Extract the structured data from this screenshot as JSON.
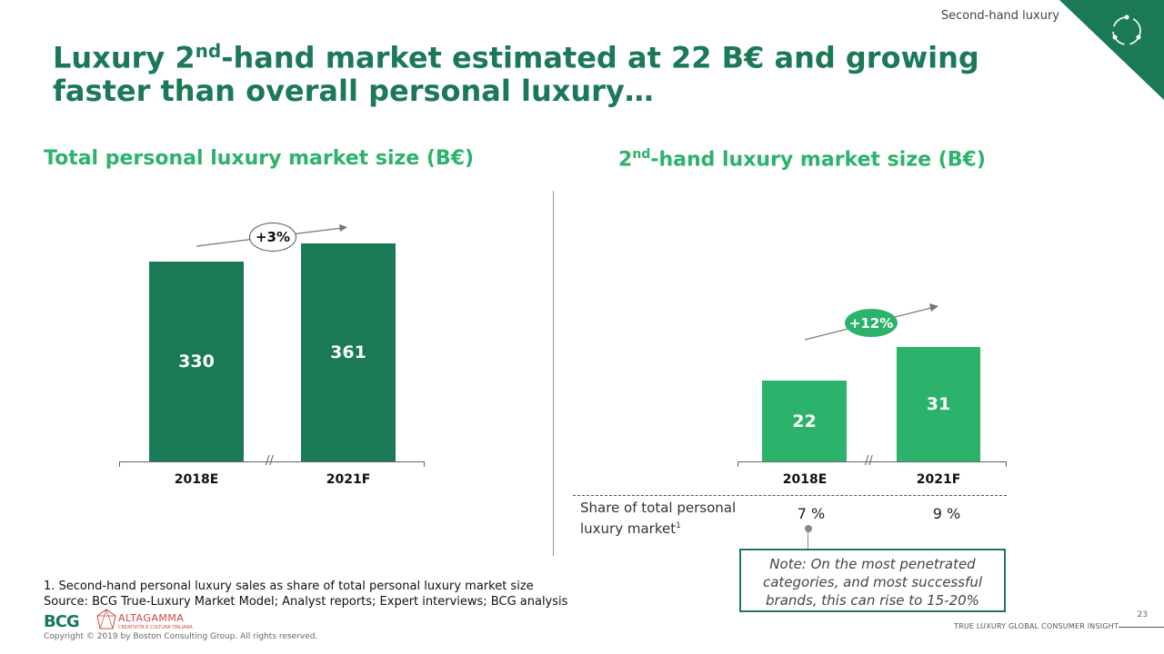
{
  "header": {
    "tag": "Second-hand luxury",
    "title_part1": "Luxury 2",
    "title_sup": "nd",
    "title_part2": "-hand market estimated at 22 B€ and growing faster than overall personal luxury…"
  },
  "left_chart": {
    "title": "Total personal luxury market size (B€)",
    "growth_label": "+3%"
  },
  "right_chart": {
    "title_part1": "2",
    "title_sup": "nd",
    "title_part2": "-hand luxury market size (B€)",
    "growth_label": "+12%",
    "share_label_line1": "Share of total personal",
    "share_label_line2": "luxury market",
    "share_label_sup": "1",
    "share_values": [
      "7 %",
      "9 %"
    ],
    "note": "Note: On the most penetrated categories, and most successful brands, this can rise to 15-20%"
  },
  "chart_data": [
    {
      "type": "bar",
      "title": "Total personal luxury market size (B€)",
      "categories": [
        "2018E",
        "2021F"
      ],
      "values": [
        330,
        361
      ],
      "growth": "+3%",
      "color": "#1b7a55"
    },
    {
      "type": "bar",
      "title": "2nd-hand luxury market size (B€)",
      "categories": [
        "2018E",
        "2021F"
      ],
      "values": [
        22,
        31
      ],
      "growth": "+12%",
      "color": "#2cb36b"
    }
  ],
  "footer": {
    "footnote": "1. Second-hand personal luxury sales as share of total personal luxury market size",
    "source": "Source: BCG True-Luxury Market Model; Analyst reports; Expert interviews; BCG analysis",
    "logo_bcg": "BCG",
    "logo_altagamma": "ALTAGAMMA",
    "logo_altagamma_sub": "CREATIVITÀ E CULTURA ITALIANA",
    "copyright": "Copyright © 2019 by Boston Consulting Group. All rights reserved.",
    "insight": "TRUE LUXURY GLOBAL CONSUMER INSIGHT",
    "page": "23"
  },
  "colors": {
    "dark_green": "#1b7a55",
    "light_green": "#2cb36b"
  },
  "icons": [
    "cycle-icon"
  ]
}
